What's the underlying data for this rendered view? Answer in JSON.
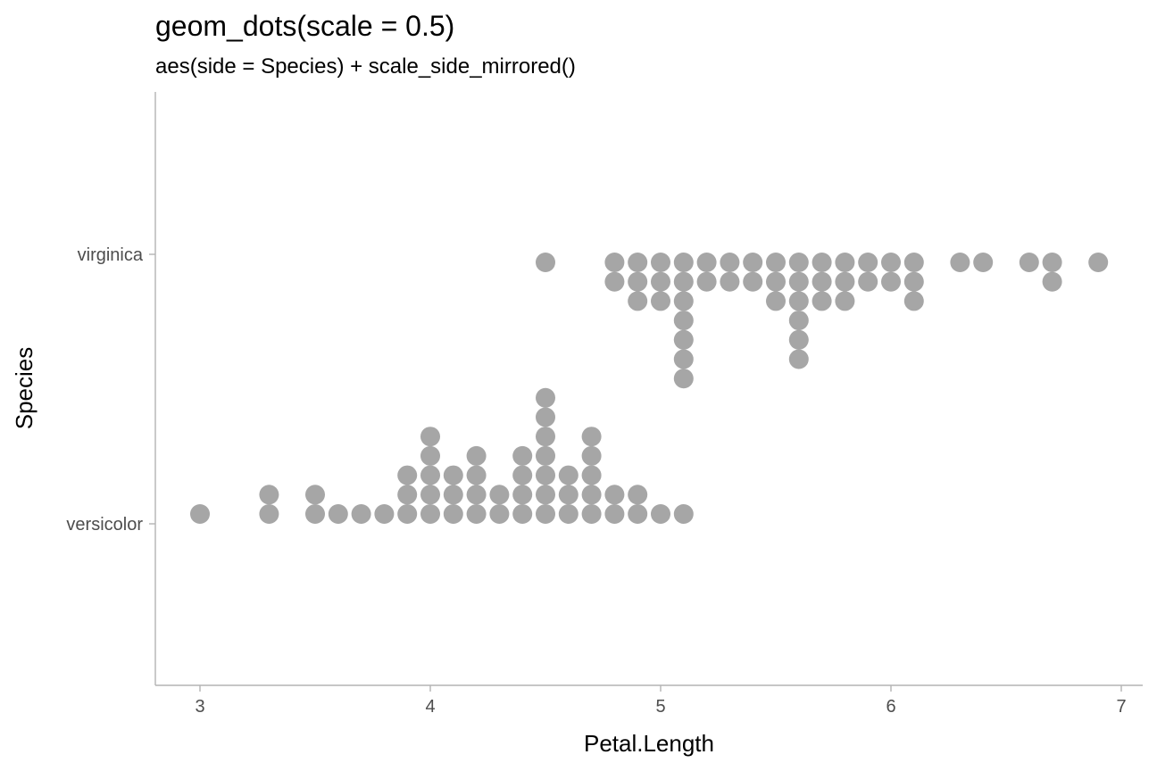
{
  "chart_data": {
    "type": "dotplot",
    "title": "geom_dots(scale = 0.5)",
    "subtitle": "aes(side = Species) + scale_side_mirrored()",
    "xlabel": "Petal.Length",
    "ylabel": "Species",
    "xlim": [
      2.8,
      7.1
    ],
    "x_ticks": [
      3,
      4,
      5,
      6,
      7
    ],
    "categories": [
      "versicolor",
      "virginica"
    ],
    "grid": false,
    "dot_color": "#a6a6a6",
    "series": [
      {
        "name": "versicolor",
        "side": "top",
        "stacks": [
          {
            "x": 3.0,
            "count": 1
          },
          {
            "x": 3.3,
            "count": 2
          },
          {
            "x": 3.5,
            "count": 2
          },
          {
            "x": 3.6,
            "count": 1
          },
          {
            "x": 3.7,
            "count": 1
          },
          {
            "x": 3.8,
            "count": 1
          },
          {
            "x": 3.9,
            "count": 3
          },
          {
            "x": 4.0,
            "count": 5
          },
          {
            "x": 4.1,
            "count": 3
          },
          {
            "x": 4.2,
            "count": 4
          },
          {
            "x": 4.3,
            "count": 2
          },
          {
            "x": 4.4,
            "count": 4
          },
          {
            "x": 4.5,
            "count": 7
          },
          {
            "x": 4.6,
            "count": 3
          },
          {
            "x": 4.7,
            "count": 5
          },
          {
            "x": 4.8,
            "count": 2
          },
          {
            "x": 4.9,
            "count": 2
          },
          {
            "x": 5.0,
            "count": 1
          },
          {
            "x": 5.1,
            "count": 1
          }
        ]
      },
      {
        "name": "virginica",
        "side": "bottom",
        "stacks": [
          {
            "x": 4.5,
            "count": 1
          },
          {
            "x": 4.8,
            "count": 2
          },
          {
            "x": 4.9,
            "count": 3
          },
          {
            "x": 5.0,
            "count": 3
          },
          {
            "x": 5.1,
            "count": 7
          },
          {
            "x": 5.2,
            "count": 2
          },
          {
            "x": 5.3,
            "count": 2
          },
          {
            "x": 5.4,
            "count": 2
          },
          {
            "x": 5.5,
            "count": 3
          },
          {
            "x": 5.6,
            "count": 6
          },
          {
            "x": 5.7,
            "count": 3
          },
          {
            "x": 5.8,
            "count": 3
          },
          {
            "x": 5.9,
            "count": 2
          },
          {
            "x": 6.0,
            "count": 2
          },
          {
            "x": 6.1,
            "count": 3
          },
          {
            "x": 6.3,
            "count": 1
          },
          {
            "x": 6.4,
            "count": 1
          },
          {
            "x": 6.6,
            "count": 1
          },
          {
            "x": 6.7,
            "count": 2
          },
          {
            "x": 6.9,
            "count": 1
          }
        ]
      }
    ]
  }
}
